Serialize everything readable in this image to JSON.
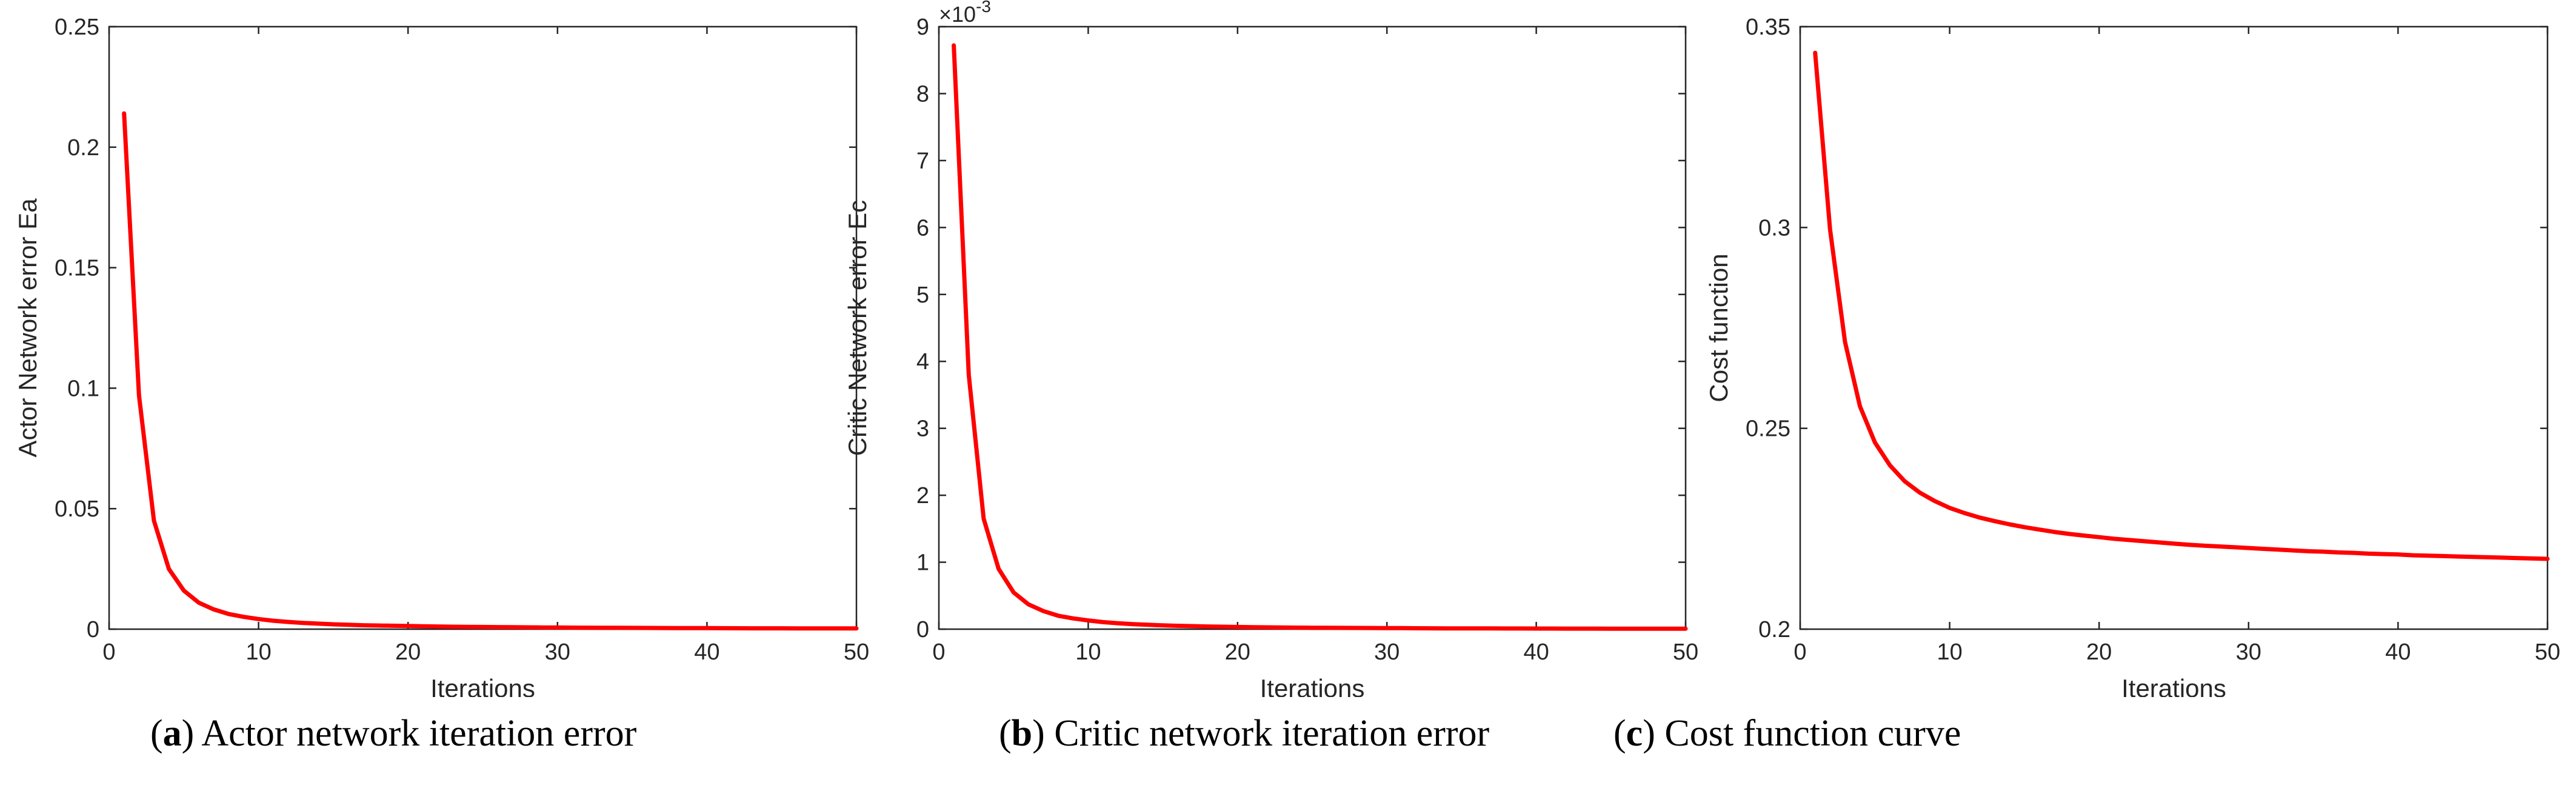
{
  "chart_data": [
    {
      "type": "line",
      "panel": "a",
      "caption_letter": "a",
      "caption_text": "Actor network iteration error",
      "xlabel": "Iterations",
      "ylabel": "Actor Network error Ea",
      "xlim": [
        0,
        50
      ],
      "ylim": [
        0,
        0.25
      ],
      "xticks": [
        0,
        10,
        20,
        30,
        40,
        50
      ],
      "xtick_labels": [
        "0",
        "10",
        "20",
        "30",
        "40",
        "50"
      ],
      "yticks": [
        0,
        0.05,
        0.1,
        0.15,
        0.2,
        0.25
      ],
      "ytick_labels": [
        "0",
        "0.05",
        "0.1",
        "0.15",
        "0.2",
        "0.25"
      ],
      "exponent_label": "",
      "grid": false,
      "line_color": "#ff0000",
      "series": [
        {
          "x": [
            1,
            2,
            3,
            4,
            5,
            6,
            7,
            8,
            9,
            10,
            11,
            12,
            13,
            14,
            15,
            16,
            17,
            18,
            19,
            20,
            21,
            22,
            23,
            24,
            25,
            26,
            27,
            28,
            29,
            30,
            31,
            32,
            33,
            34,
            35,
            36,
            37,
            38,
            39,
            40,
            41,
            42,
            43,
            44,
            45,
            46,
            47,
            48,
            49,
            50
          ],
          "values": [
            0.214,
            0.097,
            0.045,
            0.025,
            0.016,
            0.011,
            0.0082,
            0.0063,
            0.0051,
            0.0042,
            0.0035,
            0.003,
            0.0026,
            0.0023,
            0.002,
            0.0018,
            0.0016,
            0.0015,
            0.0014,
            0.0013,
            0.0012,
            0.0011,
            0.001,
            0.00095,
            0.0009,
            0.00085,
            0.0008,
            0.00075,
            0.0007,
            0.00067,
            0.00064,
            0.00061,
            0.00058,
            0.00055,
            0.00053,
            0.0005,
            0.00048,
            0.00046,
            0.00044,
            0.00042,
            0.0004,
            0.00038,
            0.00036,
            0.00035,
            0.00034,
            0.00033,
            0.00032,
            0.00031,
            0.0003,
            0.0003
          ]
        }
      ]
    },
    {
      "type": "line",
      "panel": "b",
      "caption_letter": "b",
      "caption_text": "Critic network iteration error",
      "xlabel": "Iterations",
      "ylabel": "Critic Network error Ec",
      "xlim": [
        0,
        50
      ],
      "ylim": [
        0,
        9
      ],
      "xticks": [
        0,
        10,
        20,
        30,
        40,
        50
      ],
      "xtick_labels": [
        "0",
        "10",
        "20",
        "30",
        "40",
        "50"
      ],
      "yticks": [
        0,
        1,
        2,
        3,
        4,
        5,
        6,
        7,
        8,
        9
      ],
      "ytick_labels": [
        "0",
        "1",
        "2",
        "3",
        "4",
        "5",
        "6",
        "7",
        "8",
        "9"
      ],
      "exponent_label": "×10",
      "exponent_power": "-3",
      "grid": false,
      "line_color": "#ff0000",
      "series": [
        {
          "x": [
            1,
            2,
            3,
            4,
            5,
            6,
            7,
            8,
            9,
            10,
            11,
            12,
            13,
            14,
            15,
            16,
            17,
            18,
            19,
            20,
            21,
            22,
            23,
            24,
            25,
            26,
            27,
            28,
            29,
            30,
            31,
            32,
            33,
            34,
            35,
            36,
            37,
            38,
            39,
            40,
            41,
            42,
            43,
            44,
            45,
            46,
            47,
            48,
            49,
            50
          ],
          "values": [
            8.72,
            3.8,
            1.65,
            0.9,
            0.55,
            0.37,
            0.27,
            0.2,
            0.16,
            0.13,
            0.105,
            0.088,
            0.075,
            0.065,
            0.057,
            0.05,
            0.045,
            0.04,
            0.036,
            0.033,
            0.03,
            0.027,
            0.025,
            0.023,
            0.021,
            0.02,
            0.019,
            0.018,
            0.017,
            0.016,
            0.015,
            0.014,
            0.013,
            0.012,
            0.012,
            0.011,
            0.011,
            0.01,
            0.01,
            0.009,
            0.009,
            0.008,
            0.008,
            0.008,
            0.007,
            0.007,
            0.007,
            0.006,
            0.006,
            0.006
          ]
        }
      ]
    },
    {
      "type": "line",
      "panel": "c",
      "caption_letter": "c",
      "caption_text": "Cost function curve",
      "xlabel": "Iterations",
      "ylabel": "Cost function",
      "xlim": [
        0,
        50
      ],
      "ylim": [
        0.2,
        0.35
      ],
      "xticks": [
        0,
        10,
        20,
        30,
        40,
        50
      ],
      "xtick_labels": [
        "0",
        "10",
        "20",
        "30",
        "40",
        "50"
      ],
      "yticks": [
        0.2,
        0.25,
        0.3,
        0.35
      ],
      "ytick_labels": [
        "0.2",
        "0.25",
        "0.3",
        "0.35"
      ],
      "exponent_label": "",
      "grid": false,
      "line_color": "#ff0000",
      "series": [
        {
          "x": [
            1,
            2,
            3,
            4,
            5,
            6,
            7,
            8,
            9,
            10,
            11,
            12,
            13,
            14,
            15,
            16,
            17,
            18,
            19,
            20,
            21,
            22,
            23,
            24,
            25,
            26,
            27,
            28,
            29,
            30,
            31,
            32,
            33,
            34,
            35,
            36,
            37,
            38,
            39,
            40,
            41,
            42,
            43,
            44,
            45,
            46,
            47,
            48,
            49,
            50
          ],
          "values": [
            0.3435,
            0.2995,
            0.2715,
            0.2555,
            0.2465,
            0.2408,
            0.2368,
            0.234,
            0.2319,
            0.2302,
            0.2289,
            0.2278,
            0.2269,
            0.2261,
            0.2254,
            0.2248,
            0.2242,
            0.2237,
            0.2233,
            0.2229,
            0.2225,
            0.2222,
            0.2219,
            0.2216,
            0.2213,
            0.221,
            0.2208,
            0.2206,
            0.2204,
            0.2202,
            0.22,
            0.2198,
            0.2196,
            0.2194,
            0.2193,
            0.2191,
            0.219,
            0.2188,
            0.2187,
            0.2186,
            0.2184,
            0.2183,
            0.2182,
            0.2181,
            0.218,
            0.2179,
            0.2178,
            0.2177,
            0.2176,
            0.2175
          ]
        }
      ]
    }
  ]
}
